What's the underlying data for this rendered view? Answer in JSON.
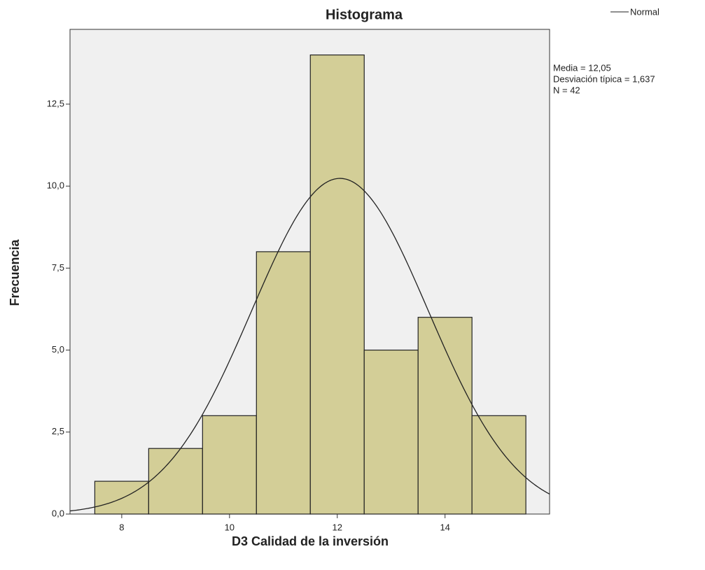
{
  "chart_data": {
    "type": "histogram",
    "title": "Histograma",
    "xlabel": "D3 Calidad de la inversión",
    "ylabel": "Frecuencia",
    "bins": [
      7.5,
      8.5,
      9.5,
      10.5,
      11.5,
      12.5,
      13.5,
      14.5,
      15.5
    ],
    "counts": [
      1,
      2,
      3,
      8,
      14,
      5,
      6,
      3
    ],
    "color": "#d3ce97",
    "xlim": [
      7.04,
      15.94
    ],
    "xticks": [
      8,
      10,
      12,
      14
    ],
    "ylim": [
      0,
      14.78
    ],
    "yticks": [
      {
        "value": 0,
        "label": "0,0"
      },
      {
        "value": 2.5,
        "label": "2,5"
      },
      {
        "value": 5,
        "label": "5,0"
      },
      {
        "value": 7.5,
        "label": "7,5"
      },
      {
        "value": 10,
        "label": "10,0"
      },
      {
        "value": 12.5,
        "label": "12,5"
      }
    ],
    "normal": {
      "name": "Normal",
      "mean": 12.05,
      "sd": 1.637,
      "n": 42,
      "color": "#222222"
    },
    "annotations": [
      "Media = 12,05",
      "Desviación típica = 1,637",
      "N = 42"
    ]
  }
}
